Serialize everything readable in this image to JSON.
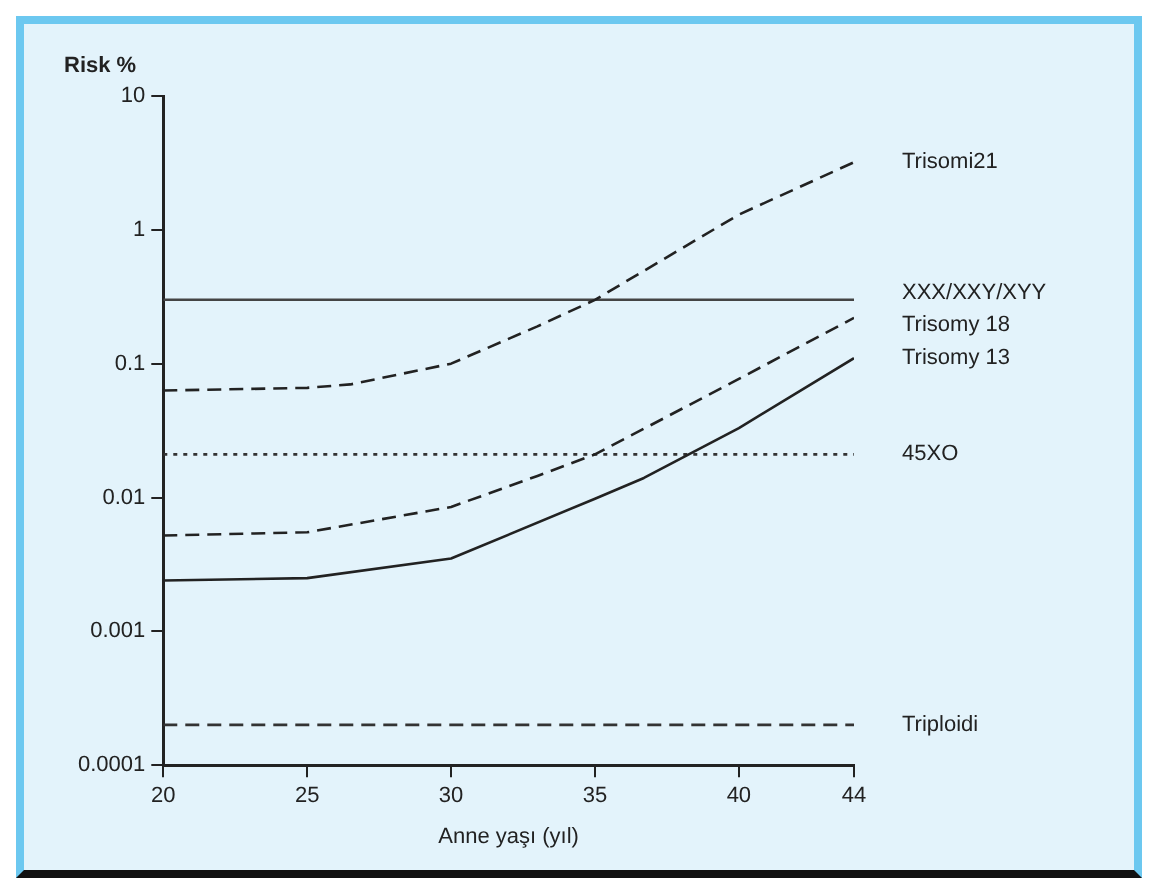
{
  "chart_data": {
    "type": "line",
    "xlabel": "Anne yaşı (yıl)",
    "ylabel": "Risk %",
    "log": "y",
    "grid": false,
    "legend": false,
    "marker": "none",
    "xlim": [
      20,
      44
    ],
    "xticks": [
      20,
      25,
      30,
      35,
      40,
      44
    ],
    "ylim": [
      0.0001,
      10
    ],
    "yticks": [
      0.0001,
      0.001,
      0.01,
      0.1,
      1,
      10
    ],
    "series": [
      {
        "name": "Trisomi21",
        "color": "#222222",
        "line_style": "dashed",
        "x": [
          20,
          25,
          26.5,
          30,
          33,
          35,
          40,
          44
        ],
        "values": [
          0.063,
          0.066,
          0.07,
          0.1,
          0.19,
          0.3,
          1.3,
          3.2
        ]
      },
      {
        "name": "XXX/XXY/XYY",
        "color": "#444444",
        "line_style": "solid",
        "x": [
          20,
          44
        ],
        "values": [
          0.3,
          0.3
        ]
      },
      {
        "name": "Trisomy 18",
        "color": "#222222",
        "line_style": "dashed",
        "x": [
          20,
          25,
          30,
          33,
          35,
          40,
          44
        ],
        "values": [
          0.0052,
          0.0055,
          0.0085,
          0.0145,
          0.021,
          0.077,
          0.22
        ]
      },
      {
        "name": "Trisomy 13",
        "color": "#222222",
        "line_style": "solid",
        "x": [
          20,
          25,
          30,
          35,
          36.7,
          40,
          44
        ],
        "values": [
          0.0024,
          0.0025,
          0.0035,
          0.0098,
          0.014,
          0.033,
          0.11
        ]
      },
      {
        "name": "45XO",
        "color": "#333333",
        "line_style": "dotted",
        "x": [
          20,
          44
        ],
        "values": [
          0.021,
          0.021
        ]
      },
      {
        "name": "Triploidi",
        "color": "#333333",
        "line_style": "dashed",
        "x": [
          20,
          44
        ],
        "values": [
          0.0002,
          0.0002
        ]
      }
    ]
  }
}
